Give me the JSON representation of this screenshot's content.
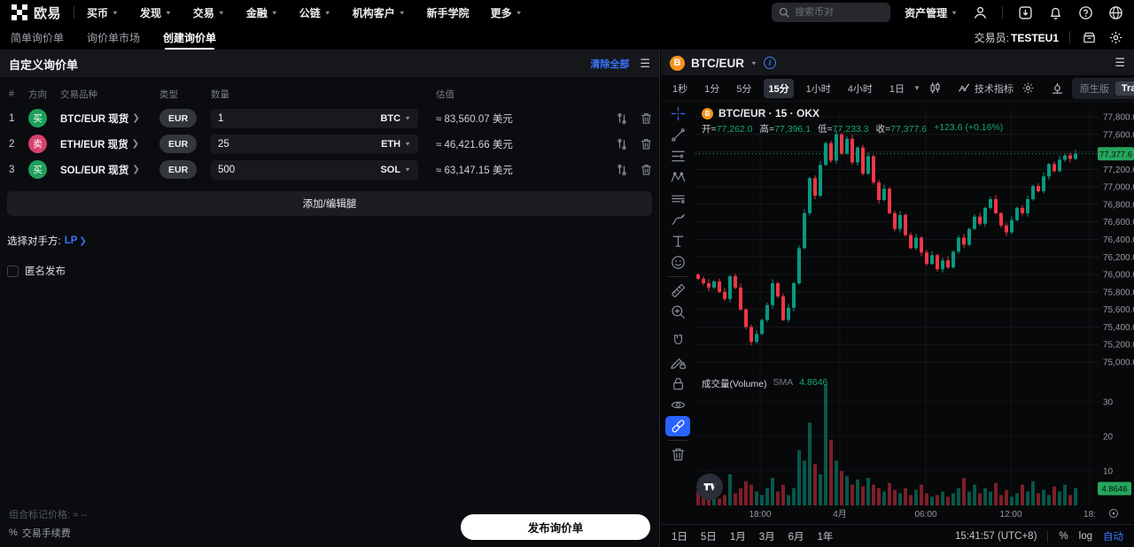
{
  "topnav": {
    "brand": "欧易",
    "items": [
      {
        "label": "买币"
      },
      {
        "label": "发现"
      },
      {
        "label": "交易"
      },
      {
        "label": "金融"
      },
      {
        "label": "公链"
      },
      {
        "label": "机构客户"
      },
      {
        "label": "新手学院"
      },
      {
        "label": "更多"
      }
    ],
    "search_placeholder": "搜索币对",
    "assets_label": "资产管理"
  },
  "subnav": {
    "tabs": [
      {
        "label": "简单询价单"
      },
      {
        "label": "询价单市场"
      },
      {
        "label": "创建询价单"
      }
    ],
    "trader_label": "交易员:",
    "trader_value": "TESTEU1"
  },
  "panel": {
    "title": "自定义询价单",
    "clear_all": "清除全部",
    "columns": {
      "idx": "#",
      "side": "方向",
      "pair": "交易品种",
      "type": "类型",
      "amount": "数量",
      "value": "估值"
    },
    "rows": [
      {
        "idx": "1",
        "side": "买",
        "side_type": "buy",
        "pair": "BTC/EUR 现货",
        "currency": "EUR",
        "amount": "1",
        "unit": "BTC",
        "value": "≈ 83,560.07 美元"
      },
      {
        "idx": "2",
        "side": "卖",
        "side_type": "sell",
        "pair": "ETH/EUR 现货",
        "currency": "EUR",
        "amount": "25",
        "unit": "ETH",
        "value": "≈ 46,421.66 美元"
      },
      {
        "idx": "3",
        "side": "买",
        "side_type": "buy",
        "pair": "SOL/EUR 现货",
        "currency": "EUR",
        "amount": "500",
        "unit": "SOL",
        "value": "≈ 63,147.15 美元"
      }
    ],
    "add_edit_legs": "添加/编辑腿",
    "counterparty_label": "选择对手方:",
    "counterparty_value": "LP",
    "anonymous_label": "匿名发布",
    "footer": {
      "mark_price_label": "组合标记价格:",
      "mark_price_value": "≈ --",
      "fee_icon": "%",
      "fee_label": "交易手续费",
      "submit": "发布询价单"
    }
  },
  "chart": {
    "symbol": "BTC/EUR",
    "intervals": [
      {
        "label": "1秒"
      },
      {
        "label": "1分"
      },
      {
        "label": "5分"
      },
      {
        "label": "15分"
      },
      {
        "label": "1小时"
      },
      {
        "label": "4小时"
      },
      {
        "label": "1日"
      }
    ],
    "indicators_label": "技术指标",
    "native_label": "原生版",
    "tv_label": "TradingView",
    "legend_title": "BTC/EUR · 15 · OKX",
    "ohlc": {
      "open_label": "开=",
      "open": "77,262.0",
      "high_label": "高=",
      "high": "77,396.1",
      "low_label": "低=",
      "low": "77,233.3",
      "close_label": "收=",
      "close": "77,377.6",
      "change": "+123.6 (+0.16%)"
    },
    "volume_title": "成交量(Volume)",
    "volume_sma_label": "SMA",
    "volume_sma_value": "4.8646",
    "ranges": [
      {
        "label": "1日"
      },
      {
        "label": "5日"
      },
      {
        "label": "1月"
      },
      {
        "label": "3月"
      },
      {
        "label": "6月"
      },
      {
        "label": "1年"
      }
    ],
    "clock": "15:41:57 (UTC+8)",
    "percent_label": "%",
    "log_label": "log",
    "auto_label": "自动"
  },
  "chart_data": {
    "type": "candlestick+volume",
    "title": "BTC/EUR · 15 · OKX",
    "interval": "15m",
    "ohlc_last": {
      "open": 77262.0,
      "high": 77396.1,
      "low": 77233.3,
      "close": 77377.6,
      "change": 123.6,
      "change_pct": 0.16
    },
    "ylim": [
      75000,
      77800
    ],
    "y_ticks": [
      {
        "p": 77800,
        "t": "77,800.0"
      },
      {
        "p": 77600,
        "t": "77,600.0"
      },
      {
        "p": 77200,
        "t": "77,200.0"
      },
      {
        "p": 77000,
        "t": "77,000.0"
      },
      {
        "p": 76800,
        "t": "76,800.0"
      },
      {
        "p": 76600,
        "t": "76,600.0"
      },
      {
        "p": 76400,
        "t": "76,400.0"
      },
      {
        "p": 76200,
        "t": "76,200.0"
      },
      {
        "p": 76000,
        "t": "76,000.0"
      },
      {
        "p": 75800,
        "t": "75,800.0"
      },
      {
        "p": 75600,
        "t": "75,600.0"
      },
      {
        "p": 75400,
        "t": "75,400.0"
      },
      {
        "p": 75200,
        "t": "75,200.0"
      },
      {
        "p": 75000,
        "t": "75,000.0"
      }
    ],
    "grid_extra": [
      77400
    ],
    "last": 77377.6,
    "last_label": "77,377.6",
    "vol_ticks": [
      {
        "v": 30,
        "t": "30"
      },
      {
        "v": 20,
        "t": "20"
      },
      {
        "v": 10,
        "t": "10"
      }
    ],
    "vol_sma": 4.8646,
    "vol_sma_label": "4.8646",
    "time_labels": [
      {
        "x": 112,
        "t": "18:00"
      },
      {
        "x": 202,
        "t": "4月"
      },
      {
        "x": 299,
        "t": "06:00"
      },
      {
        "x": 395,
        "t": "12:00"
      },
      {
        "x": 484,
        "t": "18:"
      }
    ],
    "first_open": 76000,
    "closes": [
      75950,
      75900,
      75850,
      75920,
      75800,
      75720,
      75980,
      75850,
      75600,
      75400,
      75230,
      75320,
      75480,
      75650,
      75900,
      75750,
      75480,
      75620,
      75900,
      76300,
      76700,
      77100,
      76900,
      77250,
      77500,
      77300,
      77600,
      77380,
      77550,
      77280,
      77450,
      77150,
      77350,
      77050,
      76850,
      76980,
      76700,
      76520,
      76680,
      76450,
      76300,
      76420,
      76250,
      76120,
      76220,
      76060,
      76160,
      76080,
      76260,
      76420,
      76340,
      76520,
      76660,
      76580,
      76760,
      76860,
      76700,
      76560,
      76480,
      76620,
      76760,
      76700,
      76860,
      77010,
      76950,
      77120,
      77260,
      77180,
      77310,
      77360,
      77320,
      77377.6
    ],
    "volumes": [
      4,
      2.5,
      3,
      6,
      2,
      3,
      9,
      3.5,
      5,
      7,
      6,
      4,
      3,
      5,
      8,
      4,
      6,
      3,
      5,
      16,
      13,
      24,
      12,
      9,
      35,
      19,
      13,
      10,
      8.5,
      6,
      7.5,
      5.5,
      8,
      6,
      5,
      4,
      6.5,
      4.5,
      3.5,
      5,
      3,
      4.5,
      6,
      3.5,
      2.5,
      3,
      4,
      2.5,
      3.5,
      5,
      8,
      4,
      6,
      3.5,
      5,
      4,
      6.5,
      3,
      4.5,
      2.5,
      3.5,
      6,
      4,
      7,
      3.5,
      4.5,
      3,
      5.5,
      4,
      6,
      3,
      5
    ],
    "colors": {
      "up": "#089981",
      "down": "#f23645",
      "tag": "#26a65c",
      "grid": "#16181d"
    }
  }
}
